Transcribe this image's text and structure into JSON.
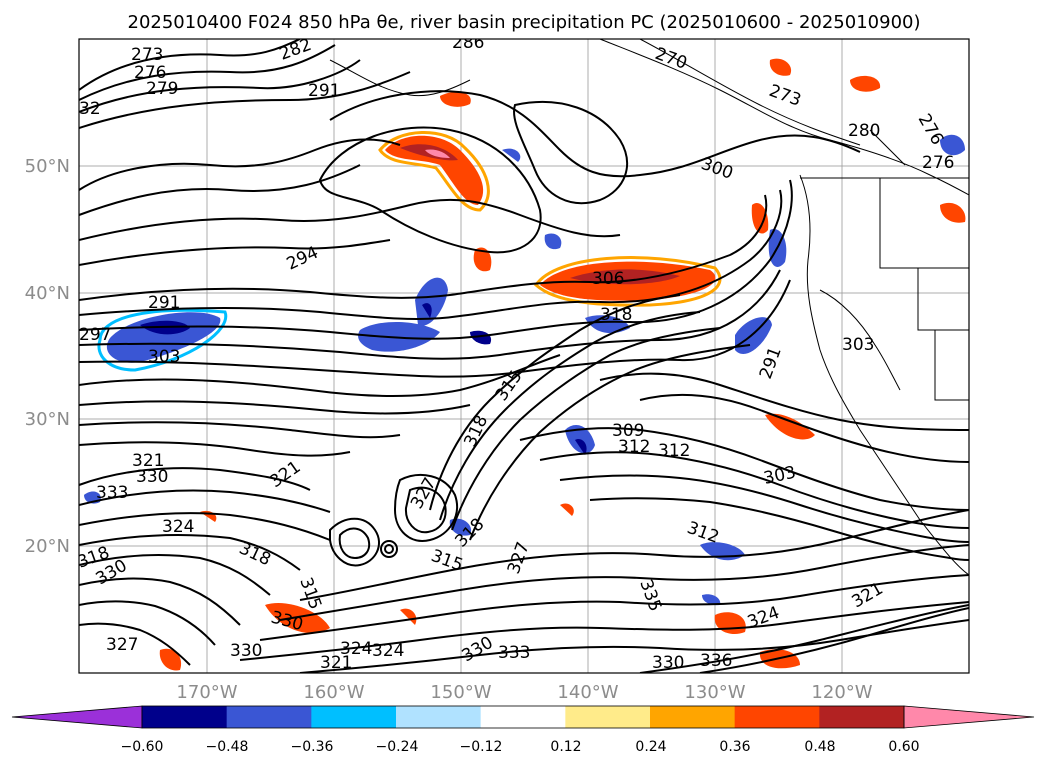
{
  "title": "2025010400 F024 850 hPa θe, river basin precipitation PC (2025010600 - 2025010900)",
  "map": {
    "lat_labels": [
      "50°N",
      "40°N",
      "30°N",
      "20°N"
    ],
    "lon_labels": [
      "170°W",
      "160°W",
      "150°W",
      "140°W",
      "130°W",
      "120°W"
    ]
  },
  "colorbar": {
    "ticks": [
      "−0.60",
      "−0.48",
      "−0.36",
      "−0.24",
      "−0.12",
      "0.12",
      "0.24",
      "0.36",
      "0.48",
      "0.60"
    ],
    "colors": [
      "#9b30d9",
      "#00008b",
      "#3a56d4",
      "#00bfff",
      "#b0e2ff",
      "#ffffff",
      "#ffeb8a",
      "#ffa500",
      "#ff4500",
      "#b22222",
      "#ff88aa",
      "#ff88aa"
    ]
  },
  "contour_labels": [
    "273",
    "276",
    "279",
    "282",
    "286",
    "270",
    "291",
    "32",
    "273",
    "280",
    "276",
    "276",
    "300",
    "294",
    "291",
    "306",
    "297",
    "318",
    "303",
    "303",
    "315",
    "291",
    "318",
    "309",
    "312",
    "312",
    "321",
    "330",
    "303",
    "333",
    "324",
    "321",
    "327",
    "318",
    "315",
    "318",
    "315",
    "327",
    "312",
    "318",
    "330",
    "335",
    "330",
    "324",
    "321",
    "324",
    "330",
    "327",
    "321",
    "324",
    "330",
    "333",
    "330",
    "336"
  ]
}
